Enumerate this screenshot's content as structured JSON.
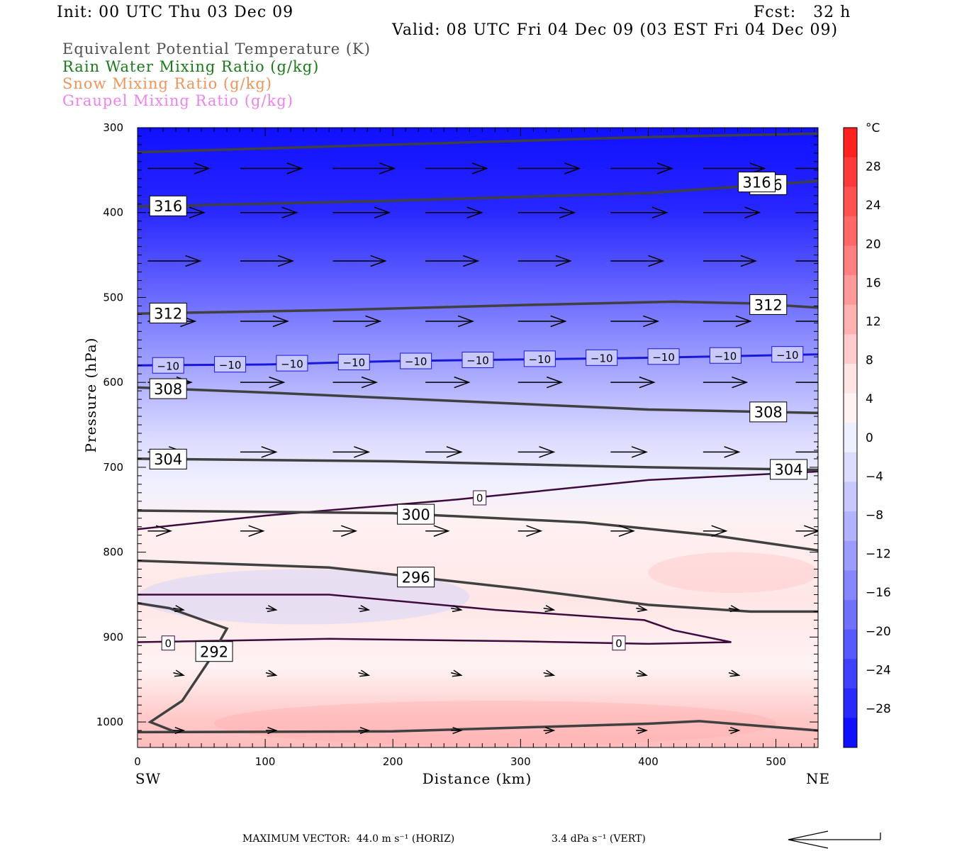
{
  "header": {
    "init": "Init: 00 UTC Thu 03 Dec 09",
    "fcst": "Fcst:   32 h",
    "valid": "Valid: 08 UTC Fri 04 Dec 09 (03 EST Fri 04 Dec 09)"
  },
  "legend": [
    {
      "text": "Equivalent Potential Temperature (K)",
      "color": "#505050"
    },
    {
      "text": "Rain Water Mixing Ratio (g/kg)",
      "color": "#1a7a1a"
    },
    {
      "text": "Snow Mixing Ratio (g/kg)",
      "color": "#f0945a"
    },
    {
      "text": "Graupel Mixing Ratio (g/kg)",
      "color": "#ee82ee"
    }
  ],
  "footer": {
    "max_vector": "MAXIMUM VECTOR:  44.0 m s⁻¹ (HORIZ)",
    "vert": "3.4 dPa s⁻¹ (VERT)"
  },
  "chart_data": {
    "type": "cross-section",
    "xlabel": "Distance (km)",
    "ylabel": "Pressure (hPa)",
    "x_range": [
      0,
      533
    ],
    "y_range": [
      1030,
      300
    ],
    "y_scale": "linear, inverted (pressure decreasing upward)",
    "x_ticks": [
      "0",
      "100",
      "200",
      "300",
      "400",
      "500"
    ],
    "y_ticks": [
      "300",
      "400",
      "500",
      "600",
      "700",
      "800",
      "900",
      "1000"
    ],
    "x_end_labels": {
      "left": "SW",
      "right": "NE"
    },
    "colorbar": {
      "unit": "°C",
      "labels": [
        "28",
        "24",
        "20",
        "16",
        "12",
        "8",
        "4",
        "0",
        "−4",
        "−8",
        "−12",
        "−16",
        "−20",
        "−24",
        "−28"
      ],
      "colors": [
        "#ff2020",
        "#ff3a3a",
        "#ff5050",
        "#ff6868",
        "#ff8080",
        "#ff9a9a",
        "#ffb2b2",
        "#ffcccc",
        "#ffe4e4",
        "#fff2f2",
        "#eef0ff",
        "#dcdcff",
        "#c8c8ff",
        "#b2b2ff",
        "#9c9cff",
        "#8686ff",
        "#7070ff",
        "#5858ff",
        "#4040ff",
        "#2828ff",
        "#1010ff"
      ]
    },
    "theta_e_contours": [
      {
        "value": 316,
        "label": "316",
        "points": [
          [
            0,
            329
          ],
          [
            200,
            320
          ],
          [
            400,
            311
          ],
          [
            533,
            307
          ]
        ]
      },
      {
        "value": 316,
        "label": "316",
        "points": [
          [
            0,
            393
          ],
          [
            200,
            386
          ],
          [
            400,
            377
          ],
          [
            533,
            363
          ]
        ]
      },
      {
        "value": 312,
        "label": "312",
        "points": [
          [
            0,
            519
          ],
          [
            150,
            515
          ],
          [
            300,
            509
          ],
          [
            420,
            505
          ],
          [
            480,
            507
          ],
          [
            533,
            512
          ]
        ]
      },
      {
        "value": 308,
        "label": "308",
        "points": [
          [
            0,
            606
          ],
          [
            100,
            612
          ],
          [
            250,
            622
          ],
          [
            400,
            632
          ],
          [
            533,
            636
          ]
        ]
      },
      {
        "value": 304,
        "label": "304",
        "points": [
          [
            0,
            690
          ],
          [
            200,
            693
          ],
          [
            400,
            700
          ],
          [
            533,
            703
          ]
        ]
      },
      {
        "value": 300,
        "label": "300",
        "points": [
          [
            0,
            751
          ],
          [
            200,
            754
          ],
          [
            350,
            765
          ],
          [
            450,
            780
          ],
          [
            533,
            798
          ]
        ]
      },
      {
        "value": 296,
        "label": "296",
        "points": [
          [
            0,
            810
          ],
          [
            150,
            818
          ],
          [
            300,
            843
          ],
          [
            400,
            862
          ],
          [
            480,
            870
          ],
          [
            533,
            870
          ]
        ]
      },
      {
        "value": 292,
        "label": "292",
        "points": [
          [
            0,
            860
          ],
          [
            25,
            866
          ],
          [
            70,
            890
          ],
          [
            55,
            930
          ],
          [
            35,
            975
          ],
          [
            10,
            1000
          ],
          [
            30,
            1012
          ]
        ]
      },
      {
        "value": 292,
        "label": "",
        "points": [
          [
            0,
            1012
          ],
          [
            200,
            1011
          ],
          [
            400,
            1002
          ],
          [
            440,
            999
          ],
          [
            533,
            1010
          ]
        ]
      }
    ],
    "temp_zero_isotherm": [
      {
        "label": "0",
        "points": [
          [
            0,
            773
          ],
          [
            100,
            757
          ],
          [
            250,
            738
          ],
          [
            400,
            715
          ],
          [
            533,
            705
          ]
        ]
      },
      {
        "label": "0",
        "points": [
          [
            0,
            906
          ],
          [
            150,
            902
          ],
          [
            300,
            905
          ],
          [
            400,
            908
          ],
          [
            465,
            906
          ],
          [
            420,
            892
          ],
          [
            397,
            880
          ],
          [
            280,
            868
          ],
          [
            150,
            850
          ],
          [
            0,
            850
          ]
        ]
      }
    ],
    "temp_minus10_isotherm": {
      "label": "−10",
      "points": [
        [
          0,
          580
        ],
        [
          100,
          579
        ],
        [
          200,
          575
        ],
        [
          300,
          573
        ],
        [
          400,
          571
        ],
        [
          533,
          567
        ]
      ]
    },
    "wind_vector_rows": [
      {
        "p": 348,
        "len_km": 48,
        "dp": 0
      },
      {
        "p": 400,
        "len_km": 44,
        "dp": 0
      },
      {
        "p": 457,
        "len_km": 41,
        "dp": 0
      },
      {
        "p": 528,
        "len_km": 37,
        "dp": 0
      },
      {
        "p": 600,
        "len_km": 34,
        "dp": 0
      },
      {
        "p": 682,
        "len_km": 28,
        "dp": 0
      },
      {
        "p": 775,
        "len_km": 18,
        "dp": 0
      },
      {
        "p": 866,
        "len_km": 8,
        "dp": 2
      },
      {
        "p": 942,
        "len_km": 8,
        "dp": 3
      },
      {
        "p": 1010,
        "len_km": 8,
        "dp": 0
      }
    ]
  }
}
